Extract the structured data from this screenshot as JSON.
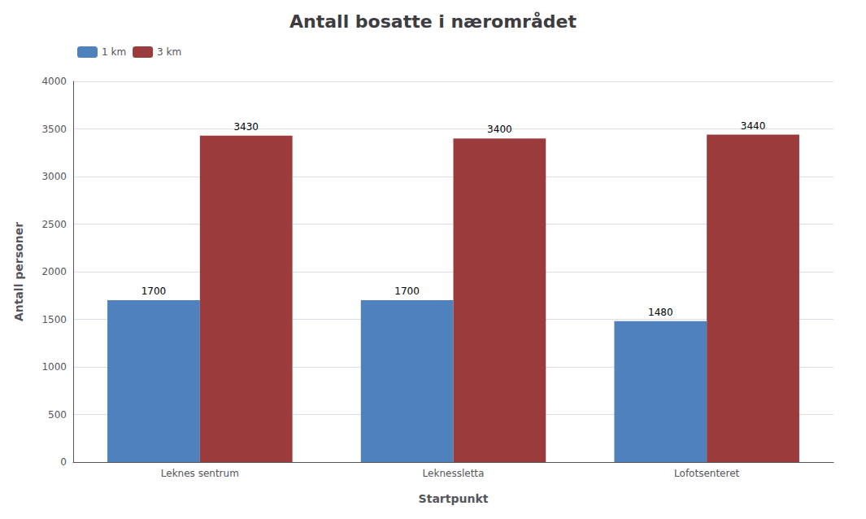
{
  "chart_data": {
    "type": "bar",
    "title": "Antall bosatte i nærområdet",
    "xlabel": "Startpunkt",
    "ylabel": "Antall personer",
    "categories": [
      "Leknes sentrum",
      "Leknessletta",
      "Lofotsenteret"
    ],
    "series": [
      {
        "name": "1 km",
        "color": "#4F81BD",
        "values": [
          1700,
          1700,
          1480
        ]
      },
      {
        "name": "3 km",
        "color": "#9B3B3B",
        "values": [
          3430,
          3400,
          3440
        ]
      }
    ],
    "ylim": [
      0,
      4000
    ],
    "yticks": [
      0,
      500,
      1000,
      1500,
      2000,
      2500,
      3000,
      3500,
      4000
    ],
    "grid": true,
    "legend": "upper left",
    "data_labels": true
  }
}
